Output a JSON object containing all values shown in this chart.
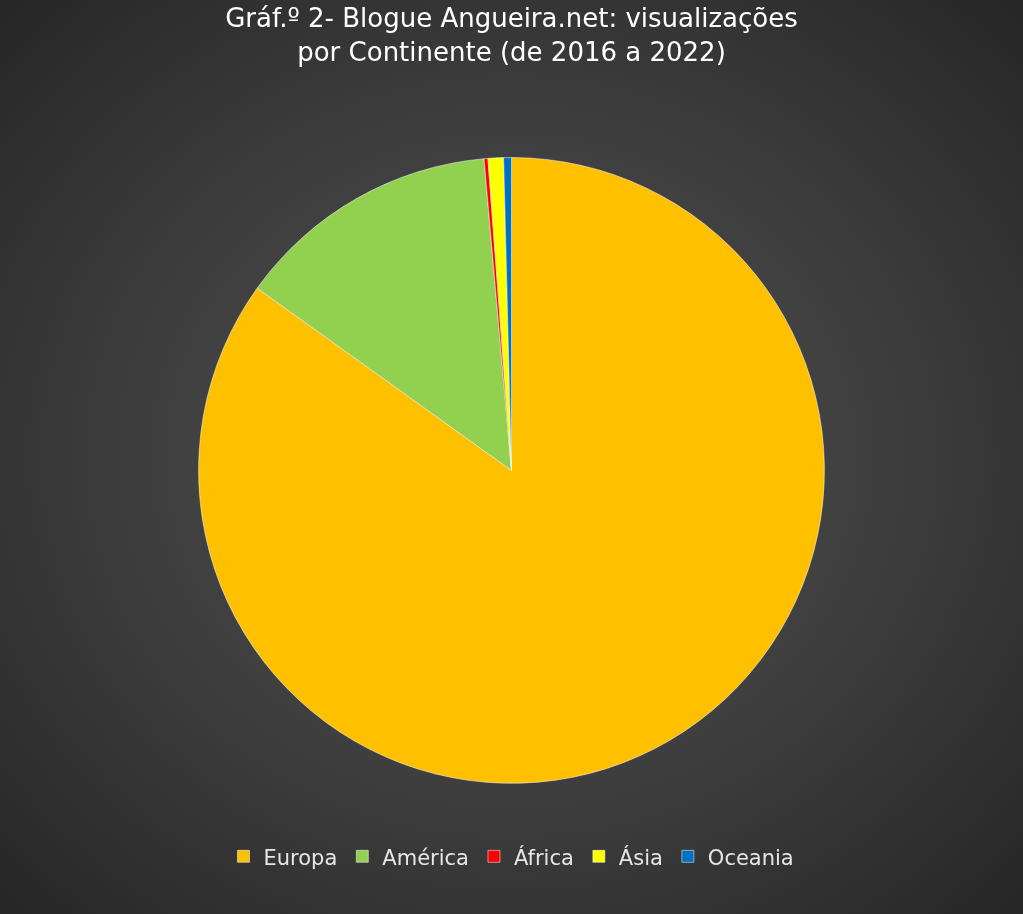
{
  "chart_data": {
    "type": "pie",
    "title": "Gráf.º 2- Blogue Angueira.net: visualizações por Continente (de 2016 a 2022)",
    "categories": [
      "Europa",
      "América",
      "África",
      "Ásia",
      "Oceania"
    ],
    "values": [
      84.9,
      13.7,
      0.2,
      0.8,
      0.4
    ],
    "colors": [
      "#ffc000",
      "#92d050",
      "#ff0000",
      "#ffff00",
      "#0070c0"
    ],
    "legend": "bottom"
  }
}
